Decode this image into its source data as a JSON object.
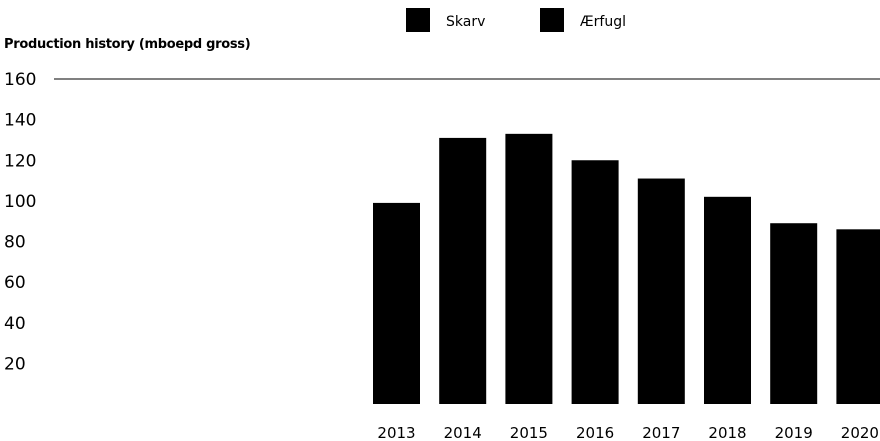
{
  "chart_data": {
    "type": "bar",
    "ylabel": "Production history (mboepd gross)",
    "xlabel": "",
    "title": "",
    "ylim": [
      0,
      160
    ],
    "yticks": [
      "20",
      "40",
      "60",
      "80",
      "100",
      "120",
      "140",
      "160"
    ],
    "categories": [
      "2013",
      "2014",
      "2015",
      "2016",
      "2017",
      "2018",
      "2019",
      "2020"
    ],
    "series": [
      {
        "name": "Skarv",
        "values": [
          99,
          131,
          133,
          120,
          111,
          102,
          89,
          86
        ]
      },
      {
        "name": "Ærfugl",
        "values": [
          0,
          0,
          0,
          0,
          0,
          0,
          0,
          0
        ]
      }
    ],
    "legend": [
      {
        "label": "Skarv",
        "color": "#000000"
      },
      {
        "label": "Ærfugl",
        "color": "#000000"
      }
    ],
    "legend_position": "top",
    "grid": false,
    "bar_color": "#000000"
  }
}
